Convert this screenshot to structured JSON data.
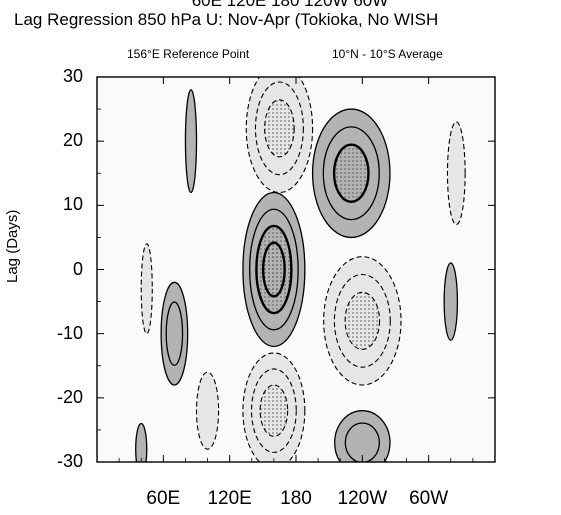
{
  "chart_data": {
    "type": "heatmap",
    "title_cut": "60E 120E 180 120W 60W",
    "title": "Lag Regression 850 hPa U: Nov-Apr (Tokioka, No WISH",
    "subtitle_left": "156°E Reference Point",
    "subtitle_right": "10°N - 10°S Average",
    "ylabel": "Lag (Days)",
    "xlabel": "",
    "xlim": [
      0,
      360
    ],
    "ylim": [
      -30,
      30
    ],
    "x_ticks": [
      "60E",
      "120E",
      "180",
      "120W",
      "60W"
    ],
    "x_tick_values": [
      60,
      120,
      180,
      240,
      300
    ],
    "y_ticks": [
      "30",
      "20",
      "10",
      "0",
      "-10",
      "-20",
      "-30"
    ],
    "y_tick_values": [
      30,
      20,
      10,
      0,
      -10,
      -20,
      -30
    ],
    "features": [
      {
        "sign": "positive",
        "lon": 160,
        "lag": 0,
        "dlon": 28,
        "dlag": 12,
        "levels": 4
      },
      {
        "sign": "positive",
        "lon": 230,
        "lag": 15,
        "dlon": 35,
        "dlag": 10,
        "levels": 3
      },
      {
        "sign": "positive",
        "lon": 70,
        "lag": -10,
        "dlon": 12,
        "dlag": 8,
        "levels": 2
      },
      {
        "sign": "positive",
        "lon": 240,
        "lag": -27,
        "dlon": 25,
        "dlag": 5,
        "levels": 2
      },
      {
        "sign": "positive",
        "lon": 40,
        "lag": -28,
        "dlon": 5,
        "dlag": 4,
        "levels": 1
      },
      {
        "sign": "positive",
        "lon": 85,
        "lag": 20,
        "dlon": 5,
        "dlag": 8,
        "levels": 1
      },
      {
        "sign": "positive",
        "lon": 320,
        "lag": -5,
        "dlon": 6,
        "dlag": 6,
        "levels": 1
      },
      {
        "sign": "negative",
        "lon": 165,
        "lag": 22,
        "dlon": 30,
        "dlag": 10,
        "levels": 3
      },
      {
        "sign": "negative",
        "lon": 240,
        "lag": -8,
        "dlon": 35,
        "dlag": 10,
        "levels": 3
      },
      {
        "sign": "negative",
        "lon": 160,
        "lag": -22,
        "dlon": 28,
        "dlag": 9,
        "levels": 3
      },
      {
        "sign": "negative",
        "lon": 45,
        "lag": -3,
        "dlon": 5,
        "dlag": 7,
        "levels": 1
      },
      {
        "sign": "negative",
        "lon": 325,
        "lag": 15,
        "dlon": 8,
        "dlag": 8,
        "levels": 1
      },
      {
        "sign": "negative",
        "lon": 100,
        "lag": -22,
        "dlon": 10,
        "dlag": 6,
        "levels": 1
      }
    ],
    "colors": {
      "positive_fill": "#b3b3b3",
      "negative_fill": "#e6e6e6",
      "line": "#000000"
    }
  }
}
